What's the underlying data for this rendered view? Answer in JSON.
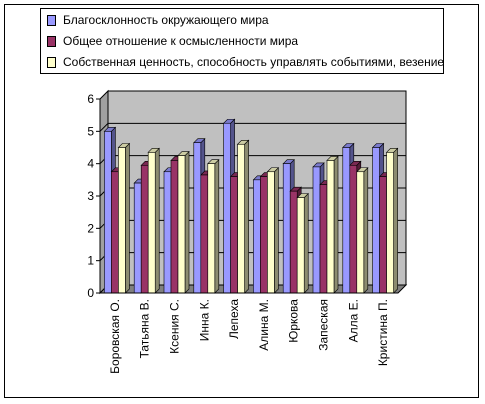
{
  "chart_data": {
    "type": "bar",
    "categories": [
      "Боровская О.",
      "Татьяна В.",
      "Ксения С.",
      "Инна К.",
      "Лепеха",
      "Алина М.",
      "Юркова",
      "Запеская",
      "Алла Е.",
      "Кристина П."
    ],
    "series": [
      {
        "name": "Благосклонность окружающего мира",
        "color": "#9999ff",
        "values": [
          5.0,
          3.4,
          3.75,
          4.65,
          5.25,
          3.5,
          4.0,
          3.9,
          4.5,
          4.5
        ]
      },
      {
        "name": "Общее отношение к осмысленности мира",
        "color": "#993366",
        "values": [
          3.75,
          3.95,
          4.1,
          3.65,
          3.6,
          3.6,
          3.15,
          3.35,
          3.95,
          3.6
        ]
      },
      {
        "name": "Собственная ценность, способность управлять событиями, везение",
        "color": "#ffffcc",
        "values": [
          4.5,
          4.35,
          4.25,
          4.0,
          4.6,
          3.75,
          2.95,
          4.1,
          3.75,
          4.35
        ]
      }
    ],
    "ylim": [
      0,
      6
    ],
    "yticks": [
      "0",
      "1",
      "2",
      "3",
      "4",
      "5",
      "6"
    ],
    "grid": true,
    "legend_position": "top",
    "plot_background": "#c0c0c0",
    "floor_color": "#808080"
  }
}
